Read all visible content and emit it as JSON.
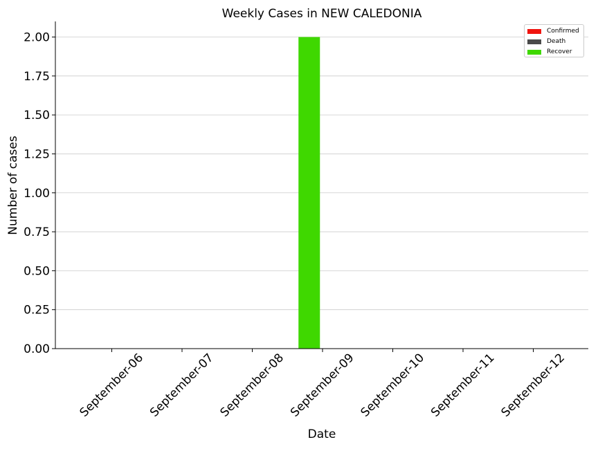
{
  "chart_data": {
    "type": "bar",
    "title": "Weekly Cases in NEW CALEDONIA",
    "xlabel": "Date",
    "ylabel": "Number of cases",
    "categories": [
      "September-06",
      "September-07",
      "September-08",
      "September-09",
      "September-10",
      "September-11",
      "September-12"
    ],
    "series": [
      {
        "name": "Confirmed",
        "color": "#f0140f",
        "values": [
          0,
          0,
          0,
          0,
          0,
          0,
          0
        ]
      },
      {
        "name": "Death",
        "color": "#4a4a4a",
        "values": [
          0,
          0,
          0,
          0,
          0,
          0,
          0
        ]
      },
      {
        "name": "Recover",
        "color": "#3fd800",
        "values": [
          0,
          0,
          0,
          2,
          0,
          0,
          0
        ]
      }
    ],
    "ylim": [
      0,
      2.1
    ],
    "yticks": [
      "0.00",
      "0.25",
      "0.50",
      "0.75",
      "1.00",
      "1.25",
      "1.50",
      "1.75",
      "2.00"
    ],
    "grid": "y",
    "legend_position": "top-right"
  }
}
